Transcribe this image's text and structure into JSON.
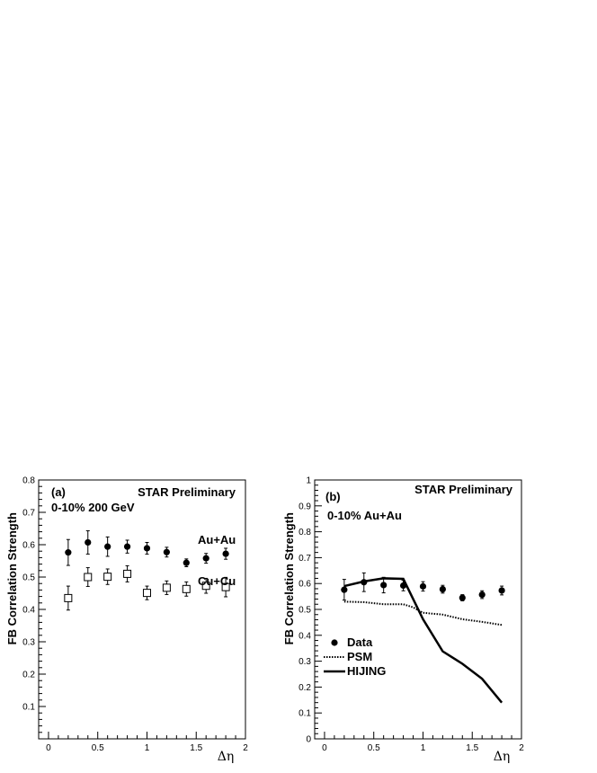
{
  "chart_data": [
    {
      "panel_label": "(a)",
      "type": "scatter",
      "xlabel": "Δη",
      "ylabel": "FB Correlation Strength",
      "xlim": [
        -0.1,
        2.0
      ],
      "ylim": [
        0.0,
        0.8
      ],
      "xticks": [
        "0",
        "0.5",
        "1",
        "1.5",
        "2"
      ],
      "yticks": [
        "0.1",
        "0.2",
        "0.3",
        "0.4",
        "0.5",
        "0.6",
        "0.7",
        "0.8"
      ],
      "annotations": [
        "STAR Preliminary",
        "0-10%  200 GeV"
      ],
      "series": [
        {
          "name": "Au+Au",
          "marker": "filled-circle",
          "x": [
            0.2,
            0.4,
            0.6,
            0.8,
            1.0,
            1.2,
            1.4,
            1.6,
            1.8
          ],
          "y": [
            0.576,
            0.607,
            0.594,
            0.594,
            0.589,
            0.577,
            0.544,
            0.558,
            0.572
          ],
          "err": [
            0.04,
            0.036,
            0.03,
            0.02,
            0.018,
            0.015,
            0.012,
            0.015,
            0.017
          ]
        },
        {
          "name": "Cu+Cu",
          "marker": "open-square",
          "x": [
            0.2,
            0.4,
            0.6,
            0.8,
            1.0,
            1.2,
            1.4,
            1.6,
            1.8
          ],
          "y": [
            0.435,
            0.5,
            0.501,
            0.51,
            0.451,
            0.467,
            0.463,
            0.473,
            0.469
          ],
          "err": [
            0.037,
            0.029,
            0.024,
            0.025,
            0.021,
            0.021,
            0.022,
            0.023,
            0.03
          ]
        }
      ]
    },
    {
      "panel_label": "(b)",
      "type": "line",
      "xlabel": "Δη",
      "ylabel": "FB Correlation Strength",
      "xlim": [
        -0.1,
        2.0
      ],
      "ylim": [
        0.0,
        1.0
      ],
      "xticks": [
        "0",
        "0.5",
        "1",
        "1.5",
        "2"
      ],
      "yticks": [
        "0",
        "0.1",
        "0.2",
        "0.3",
        "0.4",
        "0.5",
        "0.6",
        "0.7",
        "0.8",
        "0.9",
        "1"
      ],
      "annotations": [
        "STAR Preliminary",
        "0-10% Au+Au"
      ],
      "series": [
        {
          "name": "Data",
          "marker": "filled-circle",
          "x": [
            0.2,
            0.4,
            0.6,
            0.8,
            1.0,
            1.2,
            1.4,
            1.6,
            1.8
          ],
          "y": [
            0.576,
            0.605,
            0.594,
            0.592,
            0.589,
            0.578,
            0.545,
            0.557,
            0.573
          ],
          "err": [
            0.04,
            0.036,
            0.03,
            0.02,
            0.018,
            0.015,
            0.012,
            0.015,
            0.017
          ]
        },
        {
          "name": "PSM",
          "style": "dotted",
          "x": [
            0.2,
            0.4,
            0.6,
            0.8,
            0.9,
            1.0,
            1.2,
            1.4,
            1.6,
            1.8
          ],
          "y": [
            0.53,
            0.528,
            0.52,
            0.52,
            0.508,
            0.487,
            0.48,
            0.462,
            0.452,
            0.44
          ]
        },
        {
          "name": "HIJING",
          "style": "solid",
          "x": [
            0.2,
            0.4,
            0.6,
            0.8,
            1.0,
            1.2,
            1.4,
            1.6,
            1.8
          ],
          "y": [
            0.59,
            0.608,
            0.62,
            0.618,
            0.462,
            0.338,
            0.29,
            0.232,
            0.14
          ]
        }
      ]
    }
  ]
}
